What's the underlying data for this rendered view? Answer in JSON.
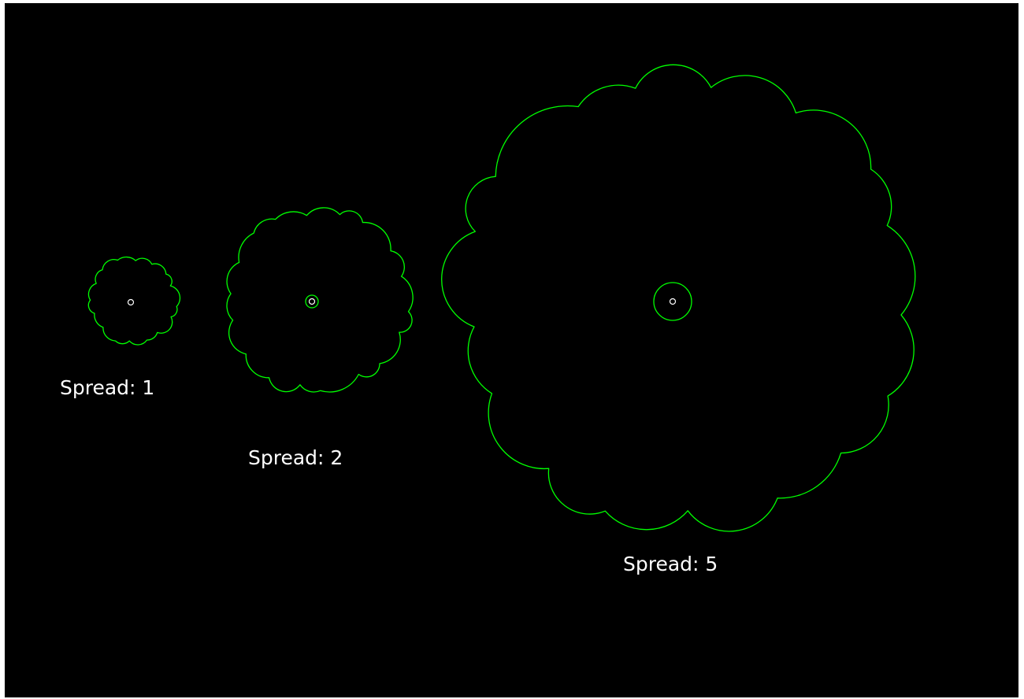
{
  "colors": {
    "background": "#000000",
    "outline": "#00ff00",
    "center_marker": "#ffffff",
    "label_text": "#ffffff"
  },
  "labels": [
    "Spread: 1",
    "Spread: 2",
    "Spread: 5"
  ]
}
